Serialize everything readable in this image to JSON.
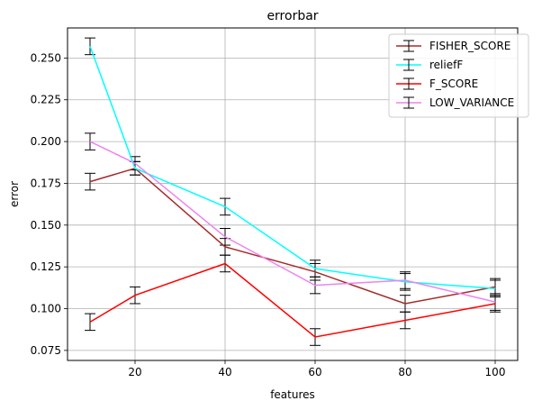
{
  "chart_data": {
    "type": "line",
    "title": "errorbar",
    "xlabel": "features",
    "ylabel": "error",
    "x": [
      10,
      20,
      40,
      60,
      80,
      100
    ],
    "xticks": [
      20,
      40,
      60,
      80,
      100
    ],
    "xtick_labels": [
      "20",
      "40",
      "60",
      "80",
      "100"
    ],
    "xlim": [
      5,
      105
    ],
    "ylim": [
      0.069,
      0.268
    ],
    "yticks": [
      0.075,
      0.1,
      0.125,
      0.15,
      0.175,
      0.2,
      0.225,
      0.25
    ],
    "ytick_labels": [
      "0.075",
      "0.100",
      "0.125",
      "0.150",
      "0.175",
      "0.200",
      "0.225",
      "0.250"
    ],
    "grid": true,
    "legend_position": "top-right",
    "errorbar_color": "#000000",
    "series": [
      {
        "name": "FISHER_SCORE",
        "color": "#a52a2a",
        "values": [
          0.176,
          0.184,
          0.137,
          0.122,
          0.103,
          0.113
        ],
        "errors": [
          0.005,
          0.004,
          0.005,
          0.005,
          0.005,
          0.005
        ]
      },
      {
        "name": "reliefF",
        "color": "#00ffff",
        "values": [
          0.257,
          0.184,
          0.161,
          0.124,
          0.116,
          0.112
        ],
        "errors": [
          0.005,
          0.004,
          0.005,
          0.005,
          0.005,
          0.005
        ]
      },
      {
        "name": "F_SCORE",
        "color": "#ff0000",
        "values": [
          0.092,
          0.108,
          0.127,
          0.083,
          0.093,
          0.103
        ],
        "errors": [
          0.005,
          0.005,
          0.005,
          0.005,
          0.005,
          0.005
        ]
      },
      {
        "name": "LOW_VARIANCE",
        "color": "#ee82ee",
        "values": [
          0.2,
          0.187,
          0.143,
          0.114,
          0.117,
          0.104
        ],
        "errors": [
          0.005,
          0.004,
          0.005,
          0.005,
          0.005,
          0.005
        ]
      }
    ]
  }
}
